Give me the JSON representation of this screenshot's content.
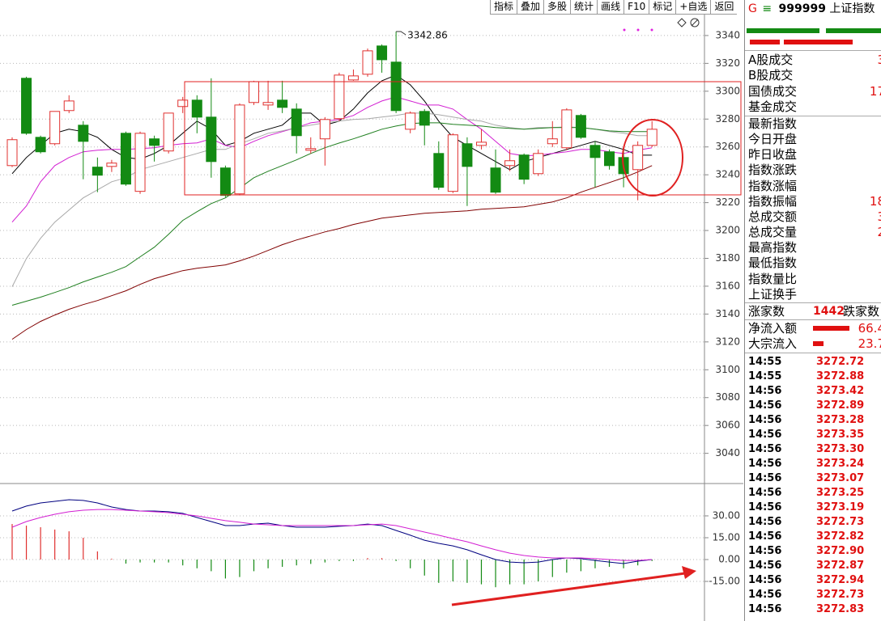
{
  "toolbar": [
    "指标",
    "叠加",
    "多股",
    "统计",
    "画线",
    "F10",
    "标记",
    "+自选",
    "返回"
  ],
  "panel": {
    "logo": "G",
    "menu": "≡",
    "code": "999999",
    "name": "上证指数",
    "trade_stats": [
      {
        "label": "A股成交",
        "value": "3"
      },
      {
        "label": "B股成交"
      },
      {
        "label": "国债成交",
        "value": "17"
      },
      {
        "label": "基金成交"
      }
    ],
    "index_stats": [
      {
        "label": "最新指数"
      },
      {
        "label": "今日开盘"
      },
      {
        "label": "昨日收盘"
      },
      {
        "label": "指数涨跌"
      },
      {
        "label": "指数涨幅"
      },
      {
        "label": "指数振幅",
        "value": "18"
      },
      {
        "label": "总成交额",
        "value": "3"
      },
      {
        "label": "总成交量",
        "value": "2"
      },
      {
        "label": "最高指数"
      },
      {
        "label": "最低指数"
      },
      {
        "label": "指数量比"
      },
      {
        "label": "上证换手"
      }
    ],
    "breadth": {
      "up_label": "涨家数",
      "up": "1442",
      "down_label": "跌家数"
    },
    "flows": [
      {
        "label": "净流入额",
        "value": "66.4"
      },
      {
        "label": "大宗流入",
        "value": "23.7"
      }
    ],
    "ticks": [
      [
        "14:55",
        "3272.72"
      ],
      [
        "14:55",
        "3272.88"
      ],
      [
        "14:56",
        "3273.42"
      ],
      [
        "14:56",
        "3272.89"
      ],
      [
        "14:56",
        "3273.28"
      ],
      [
        "14:56",
        "3273.35"
      ],
      [
        "14:56",
        "3273.30"
      ],
      [
        "14:56",
        "3273.24"
      ],
      [
        "14:56",
        "3273.07"
      ],
      [
        "14:56",
        "3273.25"
      ],
      [
        "14:56",
        "3273.19"
      ],
      [
        "14:56",
        "3272.73"
      ],
      [
        "14:56",
        "3272.82"
      ],
      [
        "14:56",
        "3272.90"
      ],
      [
        "14:56",
        "3272.87"
      ],
      [
        "14:56",
        "3272.94"
      ],
      [
        "14:56",
        "3272.73"
      ],
      [
        "14:56",
        "3272.83"
      ]
    ]
  },
  "chart_data": [
    {
      "type": "candlestick",
      "ylim": [
        3018.3,
        3365.5
      ],
      "yticks": [
        3040,
        3060,
        3080,
        3100,
        3120,
        3140,
        3160,
        3180,
        3200,
        3220,
        3240,
        3260,
        3280,
        3300,
        3320,
        3340
      ],
      "grid": true,
      "up_color": "#e0302f",
      "down_color": "#138a13",
      "categories": [
        null,
        null,
        null,
        null,
        null,
        null,
        null,
        null,
        null,
        null,
        null,
        null,
        null,
        null,
        null,
        null,
        null,
        null,
        null,
        null,
        null,
        null,
        null,
        null,
        null,
        null,
        null,
        null,
        null,
        null,
        null,
        null,
        null,
        null,
        null,
        null,
        null,
        null,
        null,
        null,
        null,
        null,
        null,
        null,
        null,
        null
      ],
      "open": [
        3246.6,
        3309.3,
        3266.9,
        3262.3,
        3286.1,
        3275.6,
        3245.5,
        3246.0,
        3269.8,
        3228.1,
        3265.8,
        3257.1,
        3289.0,
        3293.6,
        3281.4,
        3244.9,
        3226.3,
        3291.9,
        3290.1,
        3293.6,
        3287.2,
        3257.6,
        3265.8,
        3280.3,
        3308.1,
        3312.2,
        3332.5,
        3320.9,
        3272.7,
        3285.5,
        3255.3,
        3228.1,
        3262.3,
        3261.1,
        3244.9,
        3246.6,
        3254.2,
        3240.8,
        3262.3,
        3259.4,
        3282.6,
        3261.1,
        3256.5,
        3252.4,
        3243.7,
        3261.1
      ],
      "high": [
        3266.9,
        3310.4,
        3268.1,
        3285.5,
        3297.1,
        3278.5,
        3252.4,
        3250.7,
        3271.0,
        3271.0,
        3268.1,
        3284.3,
        3295.9,
        3297.1,
        3309.3,
        3246.6,
        3291.3,
        3307.5,
        3307.5,
        3307.5,
        3291.3,
        3266.9,
        3281.4,
        3313.3,
        3315.6,
        3330.7,
        3333.6,
        3342.86,
        3285.5,
        3287.2,
        3264.0,
        3269.8,
        3266.9,
        3272.7,
        3258.2,
        3258.2,
        3255.3,
        3258.2,
        3278.5,
        3287.8,
        3283.7,
        3264.0,
        3258.2,
        3258.2,
        3264.0,
        3278.5
      ],
      "low": [
        3245.5,
        3268.7,
        3255.3,
        3261.1,
        3284.3,
        3236.8,
        3227.5,
        3242.0,
        3232.1,
        3226.3,
        3249.5,
        3255.3,
        3284.3,
        3269.8,
        3237.9,
        3224.0,
        3225.2,
        3290.1,
        3286.6,
        3284.3,
        3255.3,
        3255.3,
        3246.6,
        3278.5,
        3307.5,
        3310.4,
        3313.3,
        3284.3,
        3269.8,
        3261.1,
        3229.2,
        3226.9,
        3217.6,
        3258.2,
        3226.3,
        3242.6,
        3233.3,
        3239.1,
        3259.9,
        3257.6,
        3265.8,
        3231.0,
        3243.7,
        3231.0,
        3221.7,
        3259.9
      ],
      "close": [
        3265.2,
        3269.8,
        3256.5,
        3285.5,
        3293.0,
        3264.0,
        3239.7,
        3248.4,
        3233.3,
        3269.8,
        3261.1,
        3284.3,
        3293.6,
        3281.4,
        3249.5,
        3225.2,
        3290.1,
        3306.9,
        3291.9,
        3288.4,
        3268.1,
        3258.8,
        3279.7,
        3311.6,
        3311.0,
        3329.0,
        3322.6,
        3286.1,
        3284.3,
        3275.6,
        3231.0,
        3268.7,
        3246.0,
        3263.4,
        3227.5,
        3250.1,
        3236.8,
        3255.3,
        3265.8,
        3286.6,
        3266.9,
        3252.4,
        3246.6,
        3240.8,
        3261.1,
        3272.7
      ],
      "series": [
        {
          "color": "#000000",
          "values": [
            3240.8,
            3252.4,
            3261.1,
            3269.8,
            3272.7,
            3271.0,
            3266.9,
            3258.2,
            3252.4,
            3251.2,
            3255.3,
            3261.1,
            3269.8,
            3278.5,
            3272.7,
            3261.1,
            3264.0,
            3269.8,
            3272.7,
            3275.6,
            3284.3,
            3284.3,
            3275.6,
            3278.5,
            3287.2,
            3298.8,
            3307.5,
            3311.6,
            3304.6,
            3293.0,
            3278.5,
            3266.9,
            3261.1,
            3255.3,
            3249.5,
            3243.7,
            3249.5,
            3252.4,
            3255.3,
            3258.2,
            3261.1,
            3264.0,
            3261.1,
            3258.2,
            3254.1,
            3254.1
          ]
        },
        {
          "color": "#d21ed2",
          "values": [
            3206.0,
            3217.6,
            3235.0,
            3246.6,
            3252.4,
            3256.5,
            3257.6,
            3258.2,
            3258.2,
            3258.8,
            3259.4,
            3261.1,
            3262.3,
            3262.9,
            3265.8,
            3261.1,
            3259.4,
            3264.0,
            3268.1,
            3271.0,
            3273.9,
            3277.3,
            3278.5,
            3279.7,
            3282.6,
            3288.4,
            3293.0,
            3295.9,
            3293.0,
            3290.1,
            3290.1,
            3287.2,
            3279.7,
            3272.7,
            3264.0,
            3255.3,
            3253.6,
            3254.1,
            3255.3,
            3256.5,
            3258.2,
            3258.2,
            3256.5,
            3255.3,
            3257.6,
            3259.4
          ]
        },
        {
          "color": "#a8a8a8",
          "values": [
            3159.6,
            3179.9,
            3194.4,
            3206.0,
            3214.7,
            3223.4,
            3229.2,
            3235.0,
            3237.9,
            3243.7,
            3246.6,
            3249.5,
            3252.4,
            3255.3,
            3258.2,
            3258.2,
            3262.3,
            3265.8,
            3269.8,
            3271.5,
            3273.9,
            3275.6,
            3277.3,
            3278.5,
            3279.7,
            3280.2,
            3281.4,
            3282.6,
            3284.3,
            3284.3,
            3283.1,
            3281.4,
            3279.7,
            3278.5,
            3275.6,
            3273.9,
            3272.7,
            3273.9,
            3273.9,
            3274.4,
            3273.9,
            3272.7,
            3271.0,
            3269.8,
            3268.1,
            3268.1
          ]
        },
        {
          "color": "#1f7f1f",
          "values": [
            3146.3,
            3149.2,
            3152.1,
            3155.5,
            3159.0,
            3163.1,
            3166.6,
            3170.0,
            3174.1,
            3181.1,
            3188.0,
            3197.3,
            3207.2,
            3213.5,
            3219.3,
            3223.4,
            3230.4,
            3237.9,
            3242.5,
            3246.6,
            3250.7,
            3255.3,
            3259.4,
            3262.8,
            3265.8,
            3269.2,
            3272.7,
            3275.0,
            3276.8,
            3277.3,
            3277.3,
            3276.2,
            3275.6,
            3275.0,
            3273.9,
            3273.3,
            3272.7,
            3273.3,
            3273.9,
            3273.9,
            3273.9,
            3272.7,
            3271.5,
            3271.0,
            3271.0,
            3271.0
          ]
        },
        {
          "color": "#800000",
          "values": [
            3121.9,
            3128.9,
            3134.7,
            3139.3,
            3143.4,
            3146.8,
            3149.7,
            3153.2,
            3156.7,
            3161.3,
            3165.4,
            3168.3,
            3171.2,
            3172.9,
            3174.1,
            3175.3,
            3178.2,
            3181.6,
            3185.7,
            3189.8,
            3193.2,
            3196.1,
            3199.0,
            3201.4,
            3204.3,
            3206.6,
            3208.9,
            3210.1,
            3211.2,
            3212.4,
            3213.0,
            3213.5,
            3214.1,
            3215.3,
            3215.9,
            3216.4,
            3217.0,
            3218.8,
            3220.5,
            3223.4,
            3227.5,
            3231.0,
            3234.4,
            3237.9,
            3242.0,
            3246.6
          ]
        }
      ]
    },
    {
      "type": "macd",
      "ylim": [
        -42.2,
        52.2
      ],
      "yticks": [
        {
          "value": -15,
          "label": "-15.00"
        },
        {
          "value": 0,
          "label": "0.00"
        },
        {
          "value": 15,
          "label": "15.00"
        },
        {
          "value": 30,
          "label": "30.00"
        }
      ],
      "grid": true,
      "histogram": {
        "up_color": "#e0302f",
        "down_color": "#138a13",
        "values": [
          24.4,
          23.3,
          22.2,
          20.6,
          19.4,
          15.0,
          5.6,
          0.6,
          -2.8,
          -2,
          -2,
          -2,
          -4,
          -6,
          -8,
          -13,
          -12,
          -8,
          -6,
          -5,
          -4,
          -3,
          -2,
          -1,
          -1,
          1,
          1,
          -1,
          -6,
          -11,
          -16,
          -15,
          -16,
          -17,
          -19,
          -17,
          -17,
          -15,
          -12,
          -9,
          -8,
          -6,
          -5,
          -6,
          -4,
          -1
        ]
      },
      "series": [
        {
          "color": "#000080",
          "values": [
            33.3,
            36.7,
            38.9,
            40.0,
            41.1,
            40.6,
            38.9,
            36.1,
            34.4,
            33.3,
            33.3,
            32.8,
            31.7,
            28.9,
            26.1,
            23.3,
            23.3,
            24.4,
            25.0,
            23.3,
            22.2,
            22.2,
            22.2,
            22.8,
            23.3,
            24.4,
            23.3,
            20.0,
            16.7,
            13.3,
            11.1,
            9.4,
            6.7,
            3.3,
            0,
            -1.7,
            -2.2,
            -1.7,
            0,
            1.1,
            0.6,
            -0.6,
            -1.7,
            -2.8,
            -1.1,
            0
          ]
        },
        {
          "color": "#d21ed2",
          "values": [
            22.2,
            26.1,
            28.9,
            31.1,
            32.8,
            33.9,
            34.4,
            34.4,
            33.9,
            33.3,
            32.8,
            32.2,
            31.1,
            30.0,
            28.3,
            26.7,
            25.6,
            24.4,
            23.9,
            23.3,
            23.3,
            23.3,
            23.3,
            23.3,
            23.3,
            23.9,
            24.4,
            23.3,
            21.1,
            18.9,
            16.7,
            14.4,
            12.2,
            9.4,
            6.7,
            4.4,
            2.8,
            1.7,
            1.1,
            1.1,
            1.1,
            0.6,
            0,
            -0.6,
            -0.6,
            0
          ]
        }
      ]
    }
  ]
}
